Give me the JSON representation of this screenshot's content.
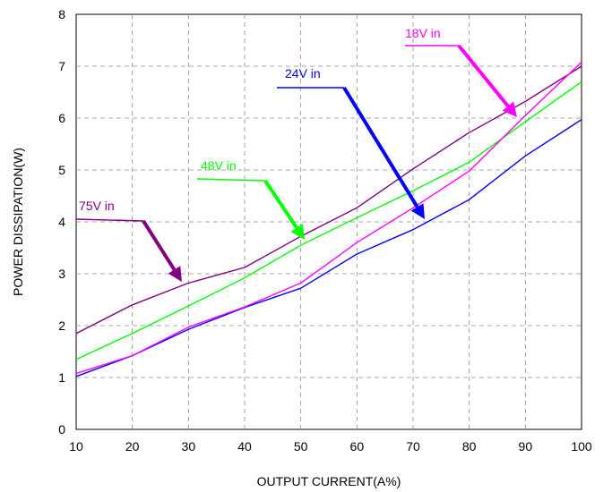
{
  "chart_data": {
    "type": "line",
    "xlabel": "OUTPUT CURRENT(A%)",
    "ylabel": "POWER DISSIPATION(W)",
    "xlim": [
      10,
      100
    ],
    "ylim": [
      0,
      8
    ],
    "x_ticks": [
      "10",
      "20",
      "30",
      "40",
      "50",
      "60",
      "70",
      "80",
      "90",
      "100"
    ],
    "y_ticks": [
      "0",
      "1",
      "2",
      "3",
      "4",
      "5",
      "6",
      "7",
      "8"
    ],
    "grid": true,
    "legend": "none",
    "x": [
      10,
      20,
      30,
      40,
      50,
      60,
      70,
      80,
      90,
      100
    ],
    "series": [
      {
        "name": "75V in",
        "color": "#800080",
        "values": [
          1.85,
          2.4,
          2.82,
          3.12,
          3.72,
          4.27,
          5.02,
          5.72,
          6.32,
          7.0
        ]
      },
      {
        "name": "48V in",
        "color": "#00ff00",
        "values": [
          1.35,
          1.85,
          2.38,
          2.92,
          3.55,
          4.08,
          4.6,
          5.15,
          5.93,
          6.7
        ]
      },
      {
        "name": "24V in",
        "color": "#0000ff",
        "values": [
          1.02,
          1.42,
          1.93,
          2.35,
          2.72,
          3.38,
          3.85,
          4.43,
          5.27,
          5.97
        ]
      },
      {
        "name": "18V in",
        "color": "#ff00ff",
        "values": [
          1.08,
          1.42,
          1.97,
          2.36,
          2.82,
          3.6,
          4.27,
          4.98,
          6.05,
          7.08
        ]
      }
    ],
    "annotations": [
      {
        "text": "75V in",
        "series": "75V in"
      },
      {
        "text": "48V in",
        "series": "48V in"
      },
      {
        "text": "24V in",
        "series": "24V in"
      },
      {
        "text": "18V in",
        "series": "18V in"
      }
    ]
  }
}
